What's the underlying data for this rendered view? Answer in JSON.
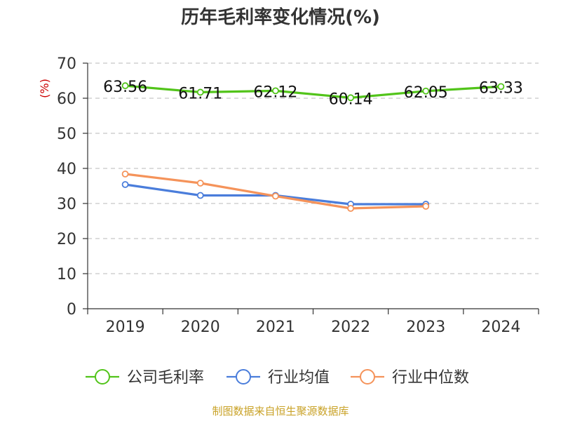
{
  "chart_data": {
    "type": "line",
    "title": "历年毛利率变化情况(%)",
    "ylabel": "(%)",
    "xlabel": "",
    "categories": [
      "2019",
      "2020",
      "2021",
      "2022",
      "2023",
      "2024"
    ],
    "ylim": [
      0,
      70
    ],
    "yticks": [
      0,
      10,
      20,
      30,
      40,
      50,
      60,
      70
    ],
    "grid": true,
    "legend_position": "bottom",
    "series": [
      {
        "name": "公司毛利率",
        "color": "#52c41a",
        "values": [
          63.56,
          61.71,
          62.12,
          60.14,
          62.05,
          63.33
        ],
        "labels": [
          "63.56",
          "61.71",
          "62.12",
          "60.14",
          "62.05",
          "63.33"
        ]
      },
      {
        "name": "行业均值",
        "color": "#4a7ddb",
        "values": [
          35.4,
          32.3,
          32.3,
          29.8,
          29.8,
          null
        ]
      },
      {
        "name": "行业中位数",
        "color": "#f5935a",
        "values": [
          38.4,
          35.8,
          32.1,
          28.6,
          29.2,
          null
        ]
      }
    ]
  },
  "source_text": "制图数据来自恒生聚源数据库"
}
